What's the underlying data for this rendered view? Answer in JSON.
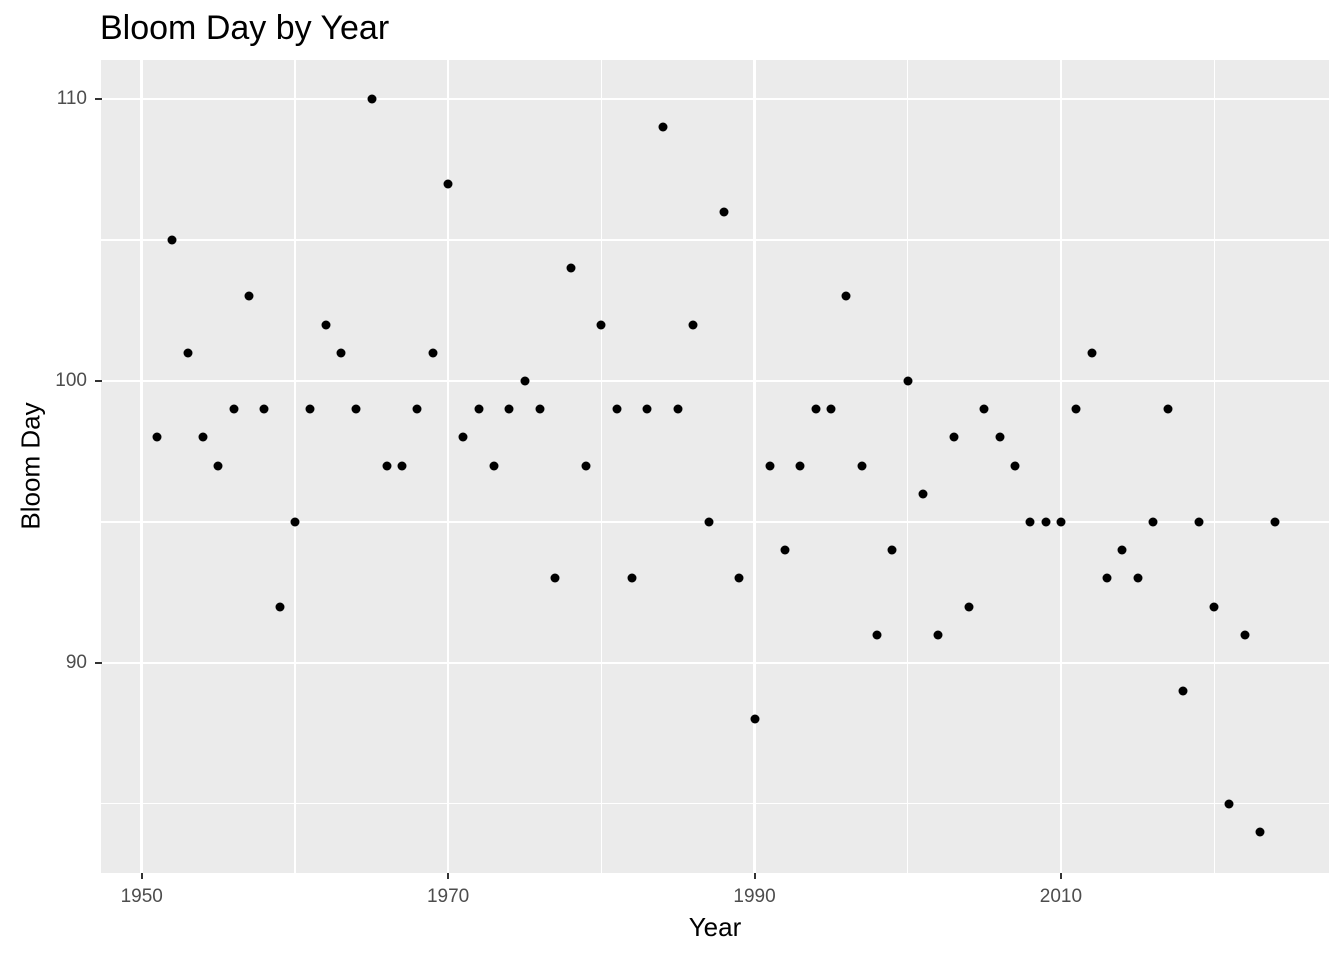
{
  "title": "Bloom Day by Year",
  "chart_data": {
    "type": "scatter",
    "title": "Bloom Day by Year",
    "xlabel": "Year",
    "ylabel": "Bloom Day",
    "grid": true,
    "legend": false,
    "panel_bg": "#EBEBEB",
    "grid_color": "#FFFFFF",
    "point_color": "#000000",
    "tick_label_color": "#4D4D4D",
    "x_ticks": [
      1950,
      1970,
      1990,
      2010
    ],
    "x_minor_gridlines": [
      1960,
      1980,
      2000,
      2020
    ],
    "y_ticks": [
      90,
      100,
      110
    ],
    "y_minor_gridlines": [
      85,
      95,
      105
    ],
    "x_domain": [
      1947.34,
      2027.5
    ],
    "y_domain": [
      82.55,
      111.38
    ],
    "points": [
      [
        1951,
        98
      ],
      [
        1952,
        105
      ],
      [
        1953,
        101
      ],
      [
        1954,
        98
      ],
      [
        1955,
        97
      ],
      [
        1956,
        99
      ],
      [
        1957,
        103
      ],
      [
        1958,
        99
      ],
      [
        1959,
        92
      ],
      [
        1960,
        95
      ],
      [
        1961,
        99
      ],
      [
        1962,
        102
      ],
      [
        1963,
        101
      ],
      [
        1964,
        99
      ],
      [
        1965,
        110
      ],
      [
        1966,
        97
      ],
      [
        1967,
        97
      ],
      [
        1968,
        99
      ],
      [
        1969,
        101
      ],
      [
        1970,
        107
      ],
      [
        1971,
        98
      ],
      [
        1972,
        99
      ],
      [
        1973,
        97
      ],
      [
        1974,
        99
      ],
      [
        1975,
        100
      ],
      [
        1976,
        99
      ],
      [
        1977,
        93
      ],
      [
        1978,
        104
      ],
      [
        1979,
        97
      ],
      [
        1980,
        102
      ],
      [
        1981,
        99
      ],
      [
        1982,
        93
      ],
      [
        1983,
        99
      ],
      [
        1984,
        109
      ],
      [
        1985,
        99
      ],
      [
        1986,
        102
      ],
      [
        1987,
        95
      ],
      [
        1988,
        106
      ],
      [
        1989,
        93
      ],
      [
        1990,
        88
      ],
      [
        1991,
        97
      ],
      [
        1992,
        94
      ],
      [
        1993,
        97
      ],
      [
        1994,
        99
      ],
      [
        1995,
        99
      ],
      [
        1996,
        103
      ],
      [
        1997,
        97
      ],
      [
        1998,
        91
      ],
      [
        1999,
        94
      ],
      [
        2000,
        100
      ],
      [
        2001,
        96
      ],
      [
        2002,
        91
      ],
      [
        2003,
        98
      ],
      [
        2004,
        92
      ],
      [
        2005,
        99
      ],
      [
        2006,
        98
      ],
      [
        2007,
        97
      ],
      [
        2008,
        95
      ],
      [
        2009,
        95
      ],
      [
        2010,
        95
      ],
      [
        2011,
        99
      ],
      [
        2012,
        101
      ],
      [
        2013,
        93
      ],
      [
        2014,
        94
      ],
      [
        2015,
        93
      ],
      [
        2016,
        95
      ],
      [
        2017,
        99
      ],
      [
        2018,
        89
      ],
      [
        2019,
        95
      ],
      [
        2020,
        92
      ],
      [
        2021,
        85
      ],
      [
        2022,
        91
      ],
      [
        2023,
        84
      ],
      [
        2024,
        95
      ]
    ]
  }
}
